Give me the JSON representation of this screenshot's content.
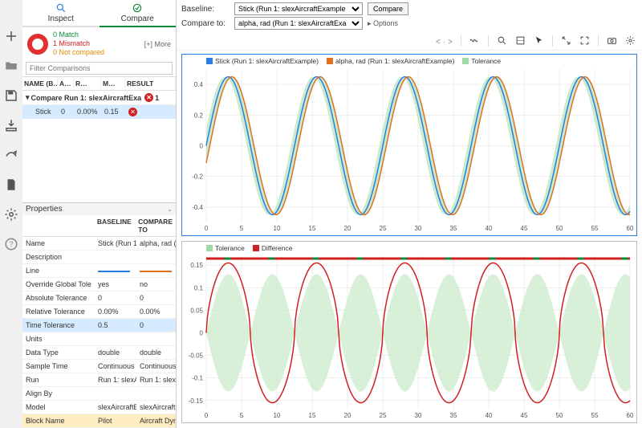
{
  "tabs": {
    "inspect": "Inspect",
    "compare": "Compare"
  },
  "status": {
    "match": "0 Match",
    "mismatch": "1 Mismatch",
    "notcompared": "0 Not compared",
    "more": "[+] More"
  },
  "filter": {
    "placeholder": "Filter Comparisons"
  },
  "tableHead": {
    "c1": "NAME (B…",
    "c2": "A…",
    "c3": "R…",
    "c4": "M…",
    "c5": "RESULT"
  },
  "groupRow": {
    "label": "Compare Run 1: slexAircraftExa",
    "count": "1"
  },
  "row": {
    "name": "Stick",
    "abs": "0",
    "rel": "0.00%",
    "max": "0.15"
  },
  "props": {
    "title": "Properties",
    "head": {
      "baseline": "BASELINE",
      "compareto": "COMPARE TO"
    },
    "rows": [
      {
        "n": "Name",
        "b": "Stick (Run 1: sl",
        "c": "alpha, rad (Run"
      },
      {
        "n": "Description",
        "b": "",
        "c": ""
      },
      {
        "n": "Line",
        "b": "__LINE_B__",
        "c": "__LINE_C__"
      },
      {
        "n": "Override Global Tole",
        "b": "yes",
        "c": "no"
      },
      {
        "n": "Absolute Tolerance",
        "b": "0",
        "c": "0"
      },
      {
        "n": "Relative Tolerance",
        "b": "0.00%",
        "c": "0.00%"
      },
      {
        "n": "Time Tolerance",
        "b": "0.5",
        "c": "0",
        "sel": true
      },
      {
        "n": "Units",
        "b": "",
        "c": ""
      },
      {
        "n": "Data Type",
        "b": "double",
        "c": "double"
      },
      {
        "n": "Sample Time",
        "b": "Continuous",
        "c": "Continuous"
      },
      {
        "n": "Run",
        "b": "Run 1: slexAirc",
        "c": "Run 1: slexAirc"
      },
      {
        "n": "Align By",
        "b": "",
        "c": ""
      },
      {
        "n": "Model",
        "b": "slexAircraftExa",
        "c": "slexAircraftExa"
      },
      {
        "n": "Block Name",
        "b": "Pilot",
        "c": "Aircraft Dynam",
        "hl": true
      }
    ]
  },
  "controls": {
    "baselineLabel": "Baseline:",
    "baselineVal": "Stick (Run 1: slexAircraftExample",
    "compareLabel": "Compare to:",
    "compareVal": "alpha, rad (Run 1: slexAircraftExa",
    "compareBtn": "Compare",
    "options": "▸ Options"
  },
  "legend1": {
    "a": {
      "label": "Stick (Run 1: slexAircraftExample)",
      "color": "#2a7de1"
    },
    "b": {
      "label": "alpha, rad (Run 1: slexAircraftExample)",
      "color": "#e07020"
    },
    "c": {
      "label": "Tolerance",
      "color": "#9fd9a3"
    }
  },
  "legend2": {
    "a": {
      "label": "Tolerance",
      "color": "#9fd9a3"
    },
    "b": {
      "label": "Difference",
      "color": "#d02020"
    }
  },
  "chart1": {
    "type": "line",
    "xlim": [
      0,
      60
    ],
    "ylim": [
      -0.5,
      0.5
    ],
    "xticks": [
      0,
      5,
      10,
      15,
      20,
      25,
      30,
      35,
      40,
      45,
      50,
      55,
      60
    ],
    "yticks": [
      -0.4,
      -0.2,
      0,
      0.2,
      0.4
    ],
    "series": {
      "tol_color": "#b6e3b9",
      "stick": {
        "color": "#2a7de1",
        "amp": 0.45,
        "period": 12.5,
        "phase": 0
      },
      "alpha": {
        "color": "#e07020",
        "amp": 0.45,
        "period": 12.5,
        "phase": 0.5
      }
    }
  },
  "chart2": {
    "type": "line",
    "xlim": [
      0,
      60
    ],
    "ylim": [
      -0.17,
      0.17
    ],
    "xticks": [
      0,
      5,
      10,
      15,
      20,
      25,
      30,
      35,
      40,
      45,
      50,
      55,
      60
    ],
    "yticks": [
      -0.15,
      -0.1,
      -0.05,
      0,
      0.05,
      0.1,
      0.15
    ],
    "tol": {
      "fill": "#c9ebc9",
      "opacity": 0.75,
      "amp": 0.13,
      "period": 6.25
    },
    "diff": {
      "color": "#d02020",
      "amp": 0.155,
      "period": 12.5,
      "phase": 0,
      "shape": "squash"
    },
    "markers": {
      "color_pass": "#0b8a3a",
      "color_fail": "#d02020"
    }
  },
  "colors": {
    "baseline_line": "#2a7de1",
    "compare_line": "#e07020"
  }
}
